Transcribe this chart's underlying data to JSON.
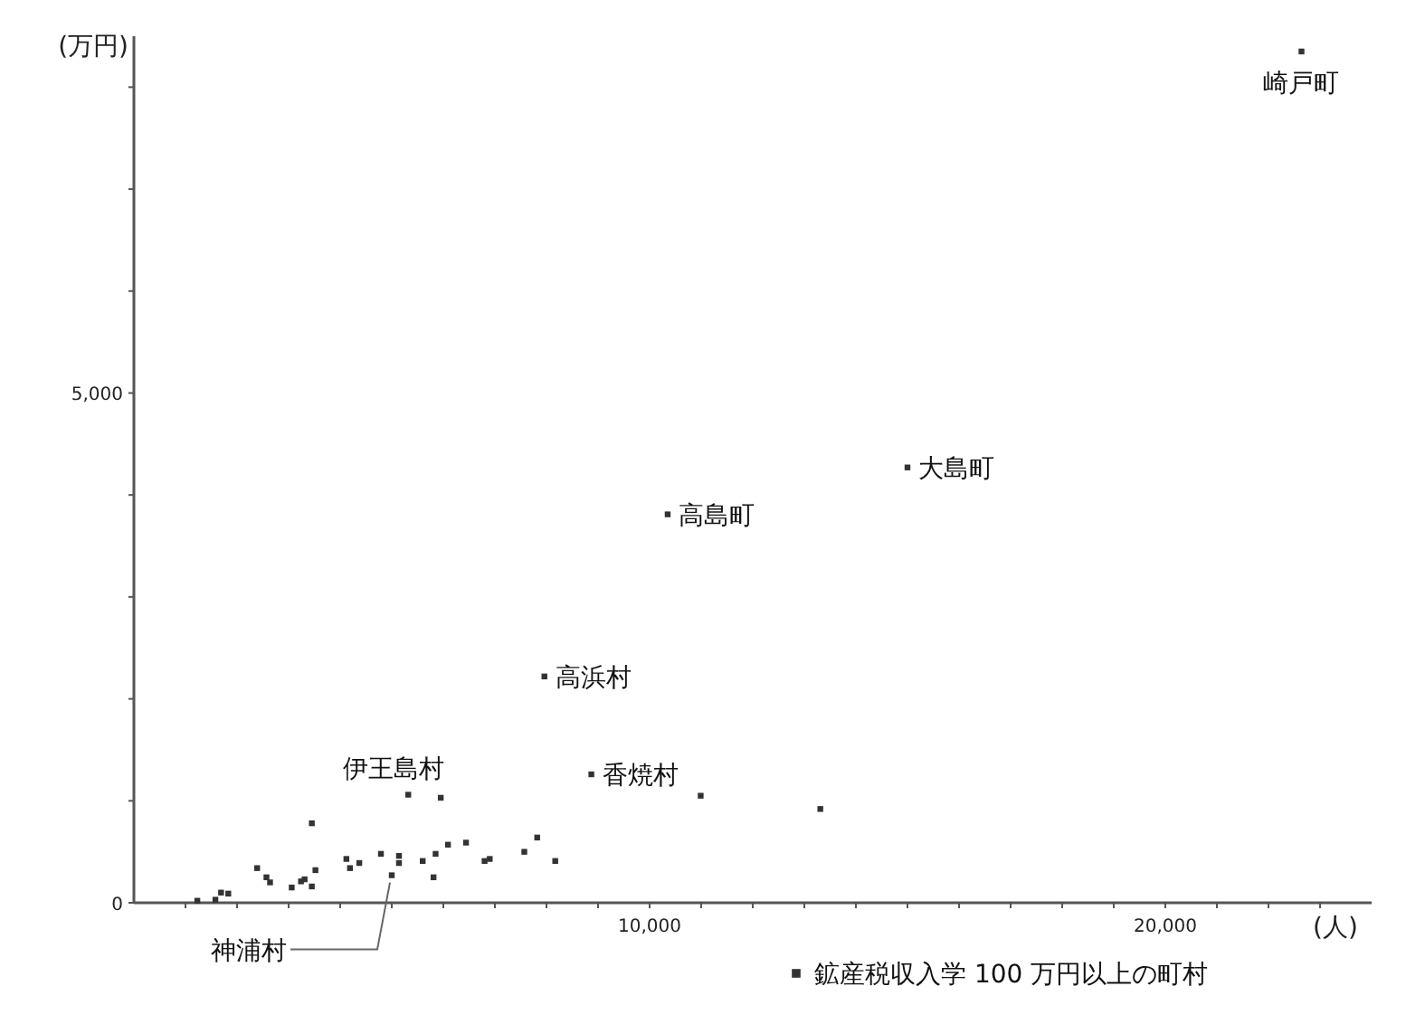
{
  "chart_data": {
    "type": "scatter",
    "xlabel": "(人)",
    "ylabel": "(万円)",
    "xlim": [
      0,
      24000
    ],
    "ylim": [
      0,
      8500
    ],
    "xticks": [
      {
        "value": 1000,
        "label": null
      },
      {
        "value": 2000,
        "label": null
      },
      {
        "value": 3000,
        "label": null
      },
      {
        "value": 4000,
        "label": null
      },
      {
        "value": 5000,
        "label": null
      },
      {
        "value": 6000,
        "label": null
      },
      {
        "value": 7000,
        "label": null
      },
      {
        "value": 8000,
        "label": null
      },
      {
        "value": 9000,
        "label": null
      },
      {
        "value": 10000,
        "label": "10,000"
      },
      {
        "value": 11000,
        "label": null
      },
      {
        "value": 12000,
        "label": null
      },
      {
        "value": 13000,
        "label": null
      },
      {
        "value": 14000,
        "label": null
      },
      {
        "value": 15000,
        "label": null
      },
      {
        "value": 16000,
        "label": null
      },
      {
        "value": 17000,
        "label": null
      },
      {
        "value": 18000,
        "label": null
      },
      {
        "value": 19000,
        "label": null
      },
      {
        "value": 20000,
        "label": "20,000"
      },
      {
        "value": 21000,
        "label": null
      },
      {
        "value": 22000,
        "label": null
      },
      {
        "value": 23000,
        "label": null
      }
    ],
    "yticks": [
      0,
      {
        "value": 1000,
        "label": null
      },
      {
        "value": 2000,
        "label": null
      },
      {
        "value": 3000,
        "label": null
      },
      {
        "value": 4000,
        "label": null
      },
      {
        "value": 5000,
        "label": "5,000"
      },
      {
        "value": 6000,
        "label": null
      },
      {
        "value": 7000,
        "label": null
      },
      {
        "value": 8000,
        "label": null
      }
    ],
    "grid": false,
    "legend": "bottom",
    "marker": "square",
    "series": [
      {
        "name": "鉱産税収入学 100 万円以上の町村",
        "color": "#333333",
        "x": [
          22640,
          15000,
          10350,
          7960,
          8870,
          10990,
          13310,
          1230,
          1580,
          1690,
          1830,
          2390,
          2570,
          2640,
          3060,
          3240,
          3310,
          3450,
          3520,
          3450,
          4120,
          4190,
          4370,
          4790,
          5000,
          5140,
          5140,
          5320,
          5600,
          5810,
          5850,
          5950,
          6090,
          6440,
          6800,
          6900,
          7570,
          7820,
          8170
        ],
        "values": [
          8350,
          4270,
          3810,
          2220,
          1260,
          1050,
          920,
          20,
          30,
          100,
          90,
          340,
          250,
          200,
          150,
          210,
          230,
          160,
          320,
          780,
          430,
          340,
          390,
          480,
          270,
          460,
          390,
          1060,
          410,
          250,
          480,
          1030,
          570,
          590,
          410,
          430,
          500,
          640,
          410
        ]
      }
    ],
    "annotations": [
      {
        "text": "崎戸町",
        "x": 22640,
        "y": 8350
      },
      {
        "text": "大島町",
        "x": 15000,
        "y": 4270
      },
      {
        "text": "高島町",
        "x": 10350,
        "y": 3810
      },
      {
        "text": "高浜村",
        "x": 7960,
        "y": 2220
      },
      {
        "text": "香焼村",
        "x": 8870,
        "y": 1260
      },
      {
        "text": "伊王島村",
        "x": 5320,
        "y": 1060
      },
      {
        "text": "神浦村",
        "x": 5000,
        "y": 270
      }
    ]
  }
}
